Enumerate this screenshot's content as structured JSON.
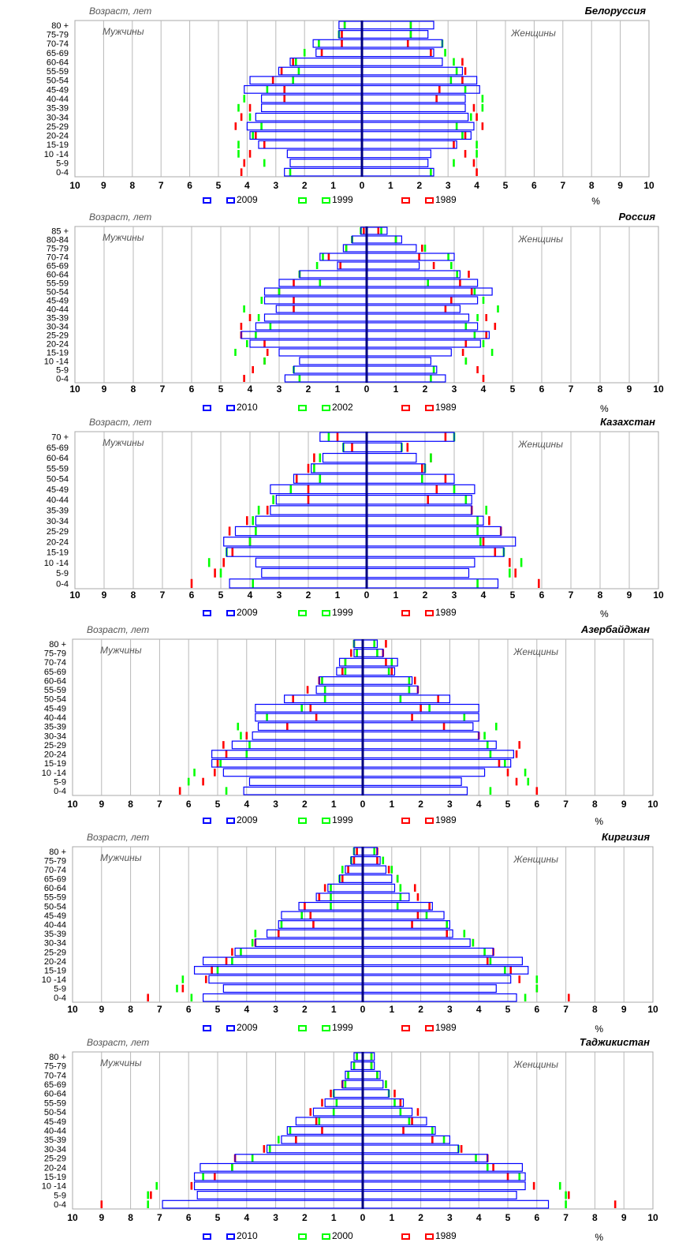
{
  "chart_data": [
    {
      "type": "bar",
      "title": "Белоруссия",
      "ylabel": "Возраст, лет",
      "left_label": "Мужчины",
      "right_label": "Женщины",
      "unit": "%",
      "xlim": [
        -10,
        10
      ],
      "x_ticks": [
        "10",
        "9",
        "8",
        "7",
        "6",
        "5",
        "4",
        "3",
        "2",
        "1",
        "0",
        "1",
        "2",
        "3",
        "4",
        "5",
        "6",
        "7",
        "8",
        "9",
        "10"
      ],
      "categories": [
        "0-4",
        "5-9",
        "10 -14",
        "15-19",
        "20-24",
        "25-29",
        "30-34",
        "35-39",
        "40-44",
        "45-49",
        "50-54",
        "55-59",
        "60-64",
        "65-69",
        "70-74",
        "75-79",
        "80 +"
      ],
      "series": [
        {
          "name": "2009",
          "color": "#0000ff",
          "male": [
            2.7,
            2.5,
            2.6,
            3.6,
            3.9,
            4.0,
            3.7,
            3.5,
            3.5,
            4.1,
            3.9,
            2.9,
            2.5,
            1.6,
            1.7,
            0.8,
            0.8
          ],
          "female": [
            2.5,
            2.3,
            2.4,
            3.3,
            3.8,
            3.9,
            3.7,
            3.6,
            3.6,
            4.1,
            4.0,
            3.5,
            2.8,
            2.5,
            2.8,
            2.3,
            2.5
          ]
        },
        {
          "name": "1999",
          "color": "#00ff00",
          "male": [
            2.5,
            3.4,
            4.3,
            4.3,
            3.8,
            3.5,
            3.9,
            4.3,
            4.1,
            3.3,
            2.4,
            2.2,
            2.3,
            2.0,
            1.5,
            0.8,
            0.6
          ],
          "female": [
            2.4,
            3.2,
            4.0,
            4.0,
            3.5,
            3.3,
            3.8,
            4.2,
            4.2,
            3.6,
            3.1,
            3.3,
            3.2,
            2.9,
            2.8,
            1.7,
            1.7
          ]
        },
        {
          "name": "1989",
          "color": "#ff0000",
          "male": [
            4.2,
            4.1,
            3.9,
            3.4,
            3.7,
            4.4,
            4.2,
            3.9,
            2.7,
            2.7,
            3.1,
            2.8,
            2.4,
            1.4,
            0.7,
            0.7,
            0.6
          ],
          "female": [
            4.0,
            3.9,
            3.6,
            3.2,
            3.6,
            4.2,
            4.0,
            3.9,
            2.6,
            2.7,
            3.5,
            3.6,
            3.5,
            2.4,
            1.6,
            1.7,
            1.7
          ]
        }
      ]
    },
    {
      "type": "bar",
      "title": "Россия",
      "ylabel": "Возраст, лет",
      "left_label": "Мужчины",
      "right_label": "Женщины",
      "unit": "%",
      "xlim": [
        -10,
        10
      ],
      "x_ticks": [
        "10",
        "9",
        "8",
        "7",
        "6",
        "5",
        "4",
        "3",
        "2",
        "1",
        "0",
        "1",
        "2",
        "3",
        "4",
        "5",
        "6",
        "7",
        "8",
        "9",
        "10"
      ],
      "categories": [
        "0-4",
        "5-9",
        "10 -14",
        "15-19",
        "20-24",
        "25-29",
        "30-34",
        "35-39",
        "40-44",
        "45-49",
        "50-54",
        "55-59",
        "60-64",
        "65-69",
        "70-74",
        "75-79",
        "80-84",
        "85 +"
      ],
      "series": [
        {
          "name": "2010",
          "color": "#0000ff",
          "male": [
            2.8,
            2.5,
            2.3,
            3.0,
            4.0,
            4.3,
            3.8,
            3.5,
            3.1,
            3.5,
            3.5,
            3.0,
            2.3,
            1.0,
            1.6,
            0.8,
            0.5,
            0.2
          ],
          "female": [
            2.7,
            2.4,
            2.2,
            2.9,
            3.9,
            4.2,
            3.8,
            3.5,
            3.2,
            3.8,
            4.3,
            3.8,
            3.2,
            1.8,
            3.0,
            1.7,
            1.2,
            0.7
          ]
        },
        {
          "name": "2002",
          "color": "#00ff00",
          "male": [
            2.3,
            2.5,
            3.5,
            4.5,
            4.1,
            3.8,
            3.3,
            3.7,
            4.2,
            3.6,
            3.0,
            1.6,
            2.3,
            1.7,
            1.5,
            0.7,
            0.5,
            0.2
          ],
          "female": [
            2.2,
            2.3,
            3.4,
            4.3,
            4.0,
            3.7,
            3.4,
            3.8,
            4.5,
            4.0,
            3.7,
            2.1,
            3.1,
            2.9,
            2.8,
            2.0,
            1.0,
            0.5
          ]
        },
        {
          "name": "1989",
          "color": "#ff0000",
          "male": [
            4.2,
            3.9,
            3.5,
            3.4,
            3.5,
            4.3,
            4.3,
            4.0,
            2.5,
            2.5,
            3.0,
            2.5,
            2.3,
            0.9,
            1.3,
            0.7,
            0.5,
            0.1
          ],
          "female": [
            4.0,
            3.8,
            3.4,
            3.3,
            3.4,
            4.1,
            4.4,
            4.1,
            2.7,
            2.9,
            3.6,
            3.2,
            3.5,
            2.3,
            1.8,
            1.9,
            1.0,
            0.4
          ]
        }
      ]
    },
    {
      "type": "bar",
      "title": "Казахстан",
      "ylabel": "Возраст, лет",
      "left_label": "Мужчины",
      "right_label": "Женщины",
      "unit": "%",
      "xlim": [
        -10,
        10
      ],
      "x_ticks": [
        "10",
        "9",
        "8",
        "7",
        "6",
        "5",
        "4",
        "3",
        "2",
        "1",
        "0",
        "1",
        "2",
        "3",
        "4",
        "5",
        "6",
        "7",
        "8",
        "9",
        "10"
      ],
      "categories": [
        "0-4",
        "5-9",
        "10 -14",
        "15-19",
        "20-24",
        "25-29",
        "30-34",
        "35-39",
        "40-44",
        "45-49",
        "50-54",
        "55-59",
        "60-64",
        "65-69",
        "70 +"
      ],
      "series": [
        {
          "name": "2009",
          "color": "#0000ff",
          "male": [
            4.7,
            3.6,
            3.8,
            4.8,
            4.9,
            4.5,
            3.8,
            3.3,
            3.1,
            3.3,
            2.5,
            1.9,
            1.5,
            0.8,
            1.6
          ],
          "female": [
            4.5,
            3.5,
            3.7,
            4.7,
            5.1,
            4.6,
            4.0,
            3.6,
            3.6,
            3.7,
            3.0,
            2.0,
            1.7,
            1.2,
            3.0
          ]
        },
        {
          "name": "1999",
          "color": "#00ff00",
          "male": [
            3.9,
            5.0,
            5.4,
            4.8,
            4.0,
            3.8,
            3.9,
            3.7,
            3.2,
            2.6,
            1.6,
            1.8,
            1.6,
            0.8,
            1.3
          ],
          "female": [
            3.8,
            4.9,
            5.3,
            4.7,
            3.9,
            3.8,
            3.8,
            4.1,
            3.4,
            3.0,
            1.9,
            2.0,
            2.2,
            1.2,
            3.0
          ]
        },
        {
          "name": "1989",
          "color": "#ff0000",
          "male": [
            6.0,
            5.2,
            4.9,
            4.6,
            4.0,
            4.7,
            4.1,
            3.4,
            2.0,
            2.0,
            2.4,
            2.0,
            1.8,
            0.5,
            1.0
          ],
          "female": [
            5.9,
            5.1,
            4.9,
            4.4,
            4.0,
            4.6,
            4.2,
            3.6,
            2.1,
            2.4,
            2.7,
            1.9,
            2.2,
            1.4,
            2.7
          ]
        }
      ]
    },
    {
      "type": "bar",
      "title": "Азербайджан",
      "ylabel": "Возраст, лет",
      "left_label": "Мужчины",
      "right_label": "Женщины",
      "unit": "%",
      "xlim": [
        -10,
        10
      ],
      "x_ticks": [
        "10",
        "9",
        "8",
        "7",
        "6",
        "5",
        "4",
        "3",
        "2",
        "1",
        "0",
        "1",
        "2",
        "3",
        "4",
        "5",
        "6",
        "7",
        "8",
        "9",
        "10"
      ],
      "categories": [
        "0-4",
        "5-9",
        "10 -14",
        "15-19",
        "20-24",
        "25-29",
        "30-34",
        "35-39",
        "40-44",
        "45-49",
        "50-54",
        "55-59",
        "60-64",
        "65-69",
        "70-74",
        "75-79",
        "80 +"
      ],
      "series": [
        {
          "name": "2009",
          "color": "#0000ff",
          "male": [
            4.1,
            3.9,
            4.8,
            5.2,
            5.2,
            4.5,
            3.8,
            3.6,
            3.7,
            3.7,
            2.7,
            1.6,
            1.5,
            0.9,
            0.8,
            0.3,
            0.3
          ],
          "female": [
            3.6,
            3.4,
            4.2,
            5.1,
            5.2,
            4.6,
            4.0,
            3.8,
            4.0,
            4.0,
            3.0,
            1.9,
            1.7,
            1.1,
            1.2,
            0.7,
            0.5
          ]
        },
        {
          "name": "1999",
          "color": "#00ff00",
          "male": [
            4.7,
            6.0,
            5.8,
            4.9,
            4.0,
            3.9,
            4.2,
            4.3,
            3.3,
            2.1,
            1.3,
            1.3,
            1.4,
            0.6,
            0.6,
            0.2,
            0.3
          ],
          "female": [
            4.4,
            5.7,
            5.6,
            4.9,
            4.4,
            4.3,
            4.2,
            4.6,
            3.5,
            2.3,
            1.3,
            1.6,
            1.6,
            0.9,
            1.0,
            0.5,
            0.4
          ]
        },
        {
          "name": "1989",
          "color": "#ff0000",
          "male": [
            6.3,
            5.5,
            5.1,
            5.0,
            4.7,
            4.8,
            4.0,
            2.6,
            1.6,
            1.8,
            2.4,
            1.9,
            1.5,
            0.7,
            0.6,
            0.4,
            0.3
          ],
          "female": [
            6.0,
            5.3,
            5.0,
            4.7,
            5.3,
            5.4,
            4.0,
            2.8,
            1.7,
            2.0,
            2.6,
            1.9,
            1.8,
            1.0,
            0.8,
            0.7,
            0.8
          ]
        }
      ]
    },
    {
      "type": "bar",
      "title": "Киргизия",
      "ylabel": "Возраст, лет",
      "left_label": "Мужчины",
      "right_label": "Женщины",
      "unit": "%",
      "xlim": [
        -10,
        10
      ],
      "x_ticks": [
        "10",
        "9",
        "8",
        "7",
        "6",
        "5",
        "4",
        "3",
        "2",
        "1",
        "0",
        "1",
        "2",
        "3",
        "4",
        "5",
        "6",
        "7",
        "8",
        "9",
        "10"
      ],
      "categories": [
        "0-4",
        "5-9",
        "10 -14",
        "15-19",
        "20-24",
        "25-29",
        "30-34",
        "35-39",
        "40-44",
        "45-49",
        "50-54",
        "55-59",
        "60-64",
        "65-69",
        "70-74",
        "75-79",
        "80 +"
      ],
      "series": [
        {
          "name": "2009",
          "color": "#0000ff",
          "male": [
            5.5,
            4.8,
            5.3,
            5.8,
            5.5,
            4.4,
            3.7,
            3.3,
            2.9,
            2.8,
            2.2,
            1.6,
            1.2,
            0.8,
            0.6,
            0.4,
            0.3
          ],
          "female": [
            5.3,
            4.6,
            5.1,
            5.7,
            5.5,
            4.5,
            3.7,
            3.1,
            3.0,
            2.8,
            2.4,
            1.6,
            1.1,
            1.0,
            0.8,
            0.6,
            0.5
          ]
        },
        {
          "name": "1999",
          "color": "#00ff00",
          "male": [
            5.9,
            6.4,
            6.2,
            5.0,
            4.5,
            4.2,
            3.8,
            3.7,
            2.8,
            2.1,
            1.1,
            1.1,
            1.1,
            0.8,
            0.7,
            0.4,
            0.3
          ],
          "female": [
            5.6,
            6.0,
            6.0,
            4.9,
            4.4,
            4.2,
            3.8,
            3.5,
            2.9,
            2.2,
            1.2,
            1.3,
            1.3,
            1.2,
            1.0,
            0.7,
            0.4
          ]
        },
        {
          "name": "1989",
          "color": "#ff0000",
          "male": [
            7.4,
            6.2,
            5.4,
            5.2,
            4.7,
            4.5,
            3.7,
            2.9,
            1.7,
            1.8,
            2.0,
            1.5,
            1.3,
            0.7,
            0.5,
            0.3,
            0.2
          ],
          "female": [
            7.1,
            6.0,
            5.4,
            5.1,
            4.3,
            4.5,
            3.8,
            2.9,
            1.7,
            1.9,
            2.3,
            1.9,
            1.8,
            1.2,
            0.9,
            0.5,
            0.5
          ]
        }
      ]
    },
    {
      "type": "bar",
      "title": "Таджикистан",
      "ylabel": "Возраст, лет",
      "left_label": "Мужчины",
      "right_label": "Женщины",
      "unit": "%",
      "xlim": [
        -10,
        10
      ],
      "x_ticks": [
        "10",
        "9",
        "8",
        "7",
        "6",
        "5",
        "4",
        "3",
        "2",
        "1",
        "0",
        "1",
        "2",
        "3",
        "4",
        "5",
        "6",
        "7",
        "8",
        "9",
        "10"
      ],
      "categories": [
        "0-4",
        "5-9",
        "10 -14",
        "15-19",
        "20-24",
        "25-29",
        "30-34",
        "35-39",
        "40-44",
        "45-49",
        "50-54",
        "55-59",
        "60-64",
        "65-69",
        "70-74",
        "75-79",
        "80 +"
      ],
      "series": [
        {
          "name": "2010",
          "color": "#0000ff",
          "male": [
            6.9,
            5.7,
            5.8,
            5.8,
            5.6,
            4.4,
            3.3,
            2.8,
            2.6,
            2.3,
            1.7,
            1.3,
            1.0,
            0.7,
            0.6,
            0.4,
            0.3
          ],
          "female": [
            6.4,
            5.3,
            5.6,
            5.6,
            5.5,
            4.3,
            3.3,
            3.0,
            2.5,
            2.2,
            1.7,
            1.4,
            0.9,
            0.7,
            0.6,
            0.4,
            0.4
          ]
        },
        {
          "name": "2000",
          "color": "#00ff00",
          "male": [
            7.4,
            7.4,
            7.1,
            5.5,
            4.5,
            3.8,
            3.2,
            2.9,
            2.5,
            1.5,
            1.0,
            0.9,
            1.0,
            0.6,
            0.5,
            0.3,
            0.2
          ],
          "female": [
            7.0,
            7.0,
            6.8,
            5.4,
            4.3,
            3.9,
            3.3,
            2.8,
            2.4,
            1.6,
            1.3,
            1.1,
            0.9,
            0.8,
            0.5,
            0.3,
            0.3
          ]
        },
        {
          "name": "1989",
          "color": "#ff0000",
          "male": [
            9.0,
            7.3,
            5.9,
            5.1,
            4.5,
            4.4,
            3.4,
            2.3,
            1.4,
            1.6,
            1.8,
            1.4,
            1.1,
            0.7,
            0.5,
            0.3,
            0.2
          ],
          "female": [
            8.7,
            7.1,
            5.9,
            5.0,
            4.5,
            4.3,
            3.4,
            2.4,
            1.4,
            1.7,
            1.9,
            1.3,
            1.1,
            0.8,
            0.5,
            0.3,
            0.3
          ]
        }
      ]
    }
  ]
}
